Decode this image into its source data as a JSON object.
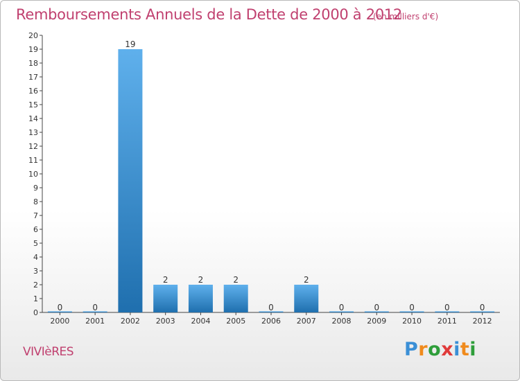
{
  "chart_data": {
    "type": "bar",
    "title": "Remboursements Annuels de la Dette de 2000 à 2012",
    "subtitle": "(en milliers d'€)",
    "categories": [
      "2000",
      "2001",
      "2002",
      "2003",
      "2004",
      "2005",
      "2006",
      "2007",
      "2008",
      "2009",
      "2010",
      "2011",
      "2012"
    ],
    "values": [
      0,
      0,
      19,
      2,
      2,
      2,
      0,
      2,
      0,
      0,
      0,
      0,
      0
    ],
    "ylim": [
      0,
      20
    ],
    "yticks": [
      0,
      1,
      2,
      3,
      4,
      5,
      6,
      7,
      8,
      9,
      10,
      11,
      12,
      13,
      14,
      15,
      16,
      17,
      18,
      19,
      20
    ],
    "xlabel": "",
    "ylabel": "",
    "grid": false
  },
  "commune": "VIVIèRES",
  "brand": {
    "letters": [
      "P",
      "r",
      "o",
      "x",
      "i",
      "t",
      "i"
    ],
    "colors": [
      "#3a8fd6",
      "#f08a1c",
      "#2e9e3a",
      "#e03a3a",
      "#3a8fd6",
      "#f08a1c",
      "#2e9e3a"
    ]
  },
  "colors": {
    "title": "#c0406f",
    "bar_light": "#5fb0ec",
    "bar_dark": "#1f6fae",
    "axis": "#444444"
  }
}
